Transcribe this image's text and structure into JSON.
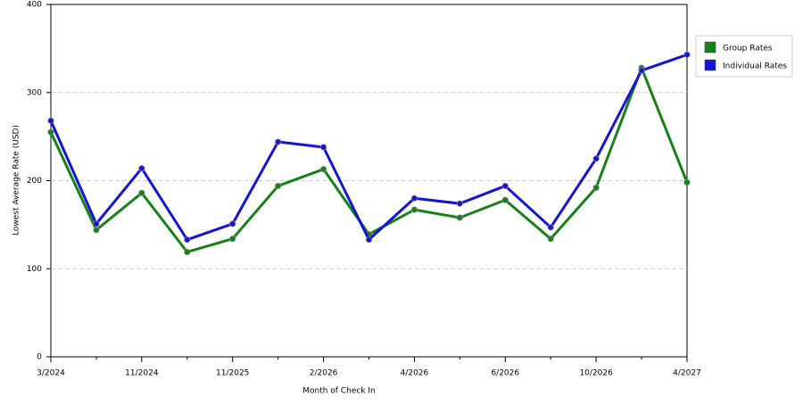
{
  "chart_data": {
    "type": "line",
    "x_label": "Month of Check In",
    "y_label": "Lowest Average Rate (USD)",
    "categories": [
      "3/2024",
      null,
      "11/2024",
      null,
      "11/2025",
      null,
      "2/2026",
      null,
      "4/2026",
      null,
      "6/2026",
      null,
      "10/2026",
      null,
      "4/2027"
    ],
    "series": [
      {
        "name": "Group Rates",
        "color": "#17801a",
        "values": [
          255,
          144,
          186,
          119,
          134,
          194,
          213,
          139,
          167,
          158,
          178,
          134,
          192,
          328,
          198
        ]
      },
      {
        "name": "Individual Rates",
        "color": "#1414d2",
        "values": [
          268,
          151,
          214,
          133,
          151,
          244,
          238,
          133,
          180,
          174,
          194,
          147,
          225,
          325,
          343
        ]
      }
    ],
    "ylim": [
      0,
      400
    ],
    "yticks": [
      0,
      100,
      200,
      300,
      400
    ],
    "grid": true,
    "legend": "right"
  }
}
